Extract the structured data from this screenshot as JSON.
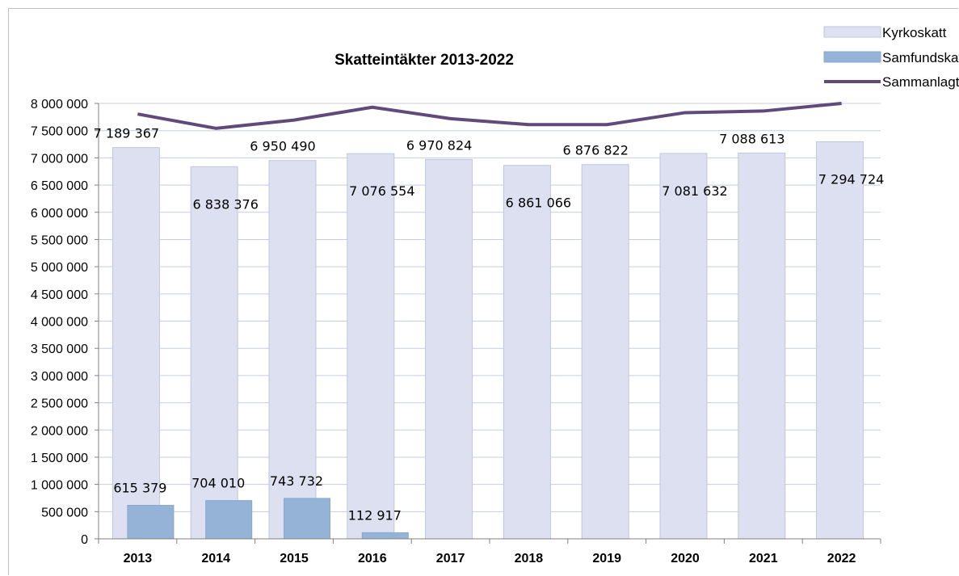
{
  "chart_data": {
    "type": "bar",
    "title": "Skatteintäkter 2013-2022",
    "categories": [
      "2013",
      "2014",
      "2015",
      "2016",
      "2017",
      "2018",
      "2019",
      "2020",
      "2021",
      "2022"
    ],
    "ylim": [
      0,
      8000000
    ],
    "y_ticks": [
      "0",
      "500 000",
      "1 000 000",
      "1 500 000",
      "2 000 000",
      "2 500 000",
      "3 000 000",
      "3 500 000",
      "4 000 000",
      "4 500 000",
      "5 000 000",
      "5 500 000",
      "6 000 000",
      "6 500 000",
      "7 000 000",
      "7 500 000",
      "8 000 000"
    ],
    "grid": true,
    "legend_position": "top-right",
    "series": [
      {
        "name": "Kyrkoskatt",
        "type": "bar",
        "color": "#dce0f1",
        "values": [
          7189367,
          6838376,
          6950490,
          7076554,
          6970824,
          6861066,
          6876822,
          7081632,
          7088613,
          7294724
        ],
        "labels": [
          "7 189 367",
          "6 838 376",
          "6 950 490",
          "7 076 554",
          "6 970 824",
          "6 861 066",
          "6 876 822",
          "7 081 632",
          "7 088 613",
          "7 294 724"
        ]
      },
      {
        "name": "Samfundskatt",
        "type": "bar",
        "color": "#95b3d7",
        "values": [
          615379,
          704010,
          743732,
          112917,
          0,
          0,
          0,
          0,
          0,
          0
        ],
        "labels": [
          "615 379",
          "704 010",
          "743 732",
          "112 917",
          "",
          "",
          "",
          "",
          "",
          ""
        ]
      },
      {
        "name": "Sammanlagt",
        "type": "line",
        "color": "#604a7b",
        "values": [
          7804746,
          7542386,
          7694222,
          7929471,
          7720000,
          7610000,
          7610000,
          7830000,
          7860000,
          8040000
        ]
      }
    ]
  }
}
